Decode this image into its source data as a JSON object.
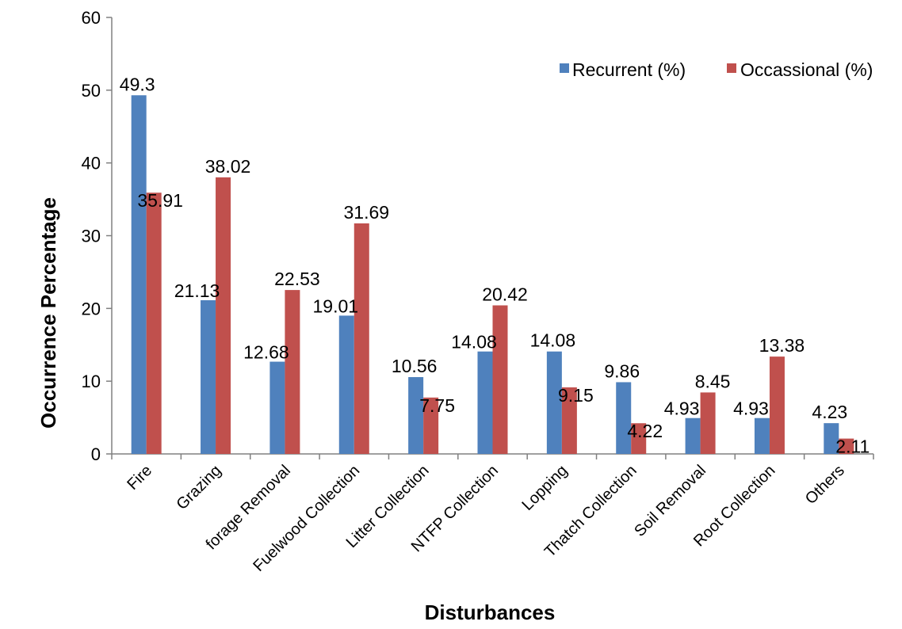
{
  "chart_data": {
    "type": "bar",
    "title": "",
    "xlabel": "Disturbances",
    "ylabel": "Occurrence  Percentage",
    "ylim": [
      0,
      60
    ],
    "yticks": [
      0,
      10,
      20,
      30,
      40,
      50,
      60
    ],
    "grid": false,
    "legend_position": "top-right",
    "categories": [
      "Fire",
      "Grazing",
      "forage Removal",
      "Fuelwood Collection",
      "Litter Collection",
      "NTFP Collection",
      "Lopping",
      "Thatch Collection",
      "Soil Removal",
      "Root Collection",
      "Others"
    ],
    "series": [
      {
        "name": "Recurrent (%)",
        "color": "#4F81BD",
        "values": [
          49.3,
          21.13,
          12.68,
          19.01,
          10.56,
          14.08,
          14.08,
          9.86,
          4.93,
          4.93,
          4.23
        ],
        "labels": [
          "49.3",
          "21.13",
          "12.68",
          "19.01",
          "10.56",
          "14.08",
          "14.08",
          "9.86",
          "4.93",
          "4.93",
          "4.23"
        ]
      },
      {
        "name": "Occassional (%)",
        "color": "#C0504D",
        "values": [
          35.91,
          38.02,
          22.53,
          31.69,
          7.75,
          20.42,
          9.15,
          4.22,
          8.45,
          13.38,
          2.11
        ],
        "labels": [
          "35.91",
          "38.02",
          "22.53",
          "31.69",
          "7.75",
          "20.42",
          "9.15",
          "4.22",
          "8.45",
          "13.38",
          "2.11"
        ]
      }
    ]
  }
}
